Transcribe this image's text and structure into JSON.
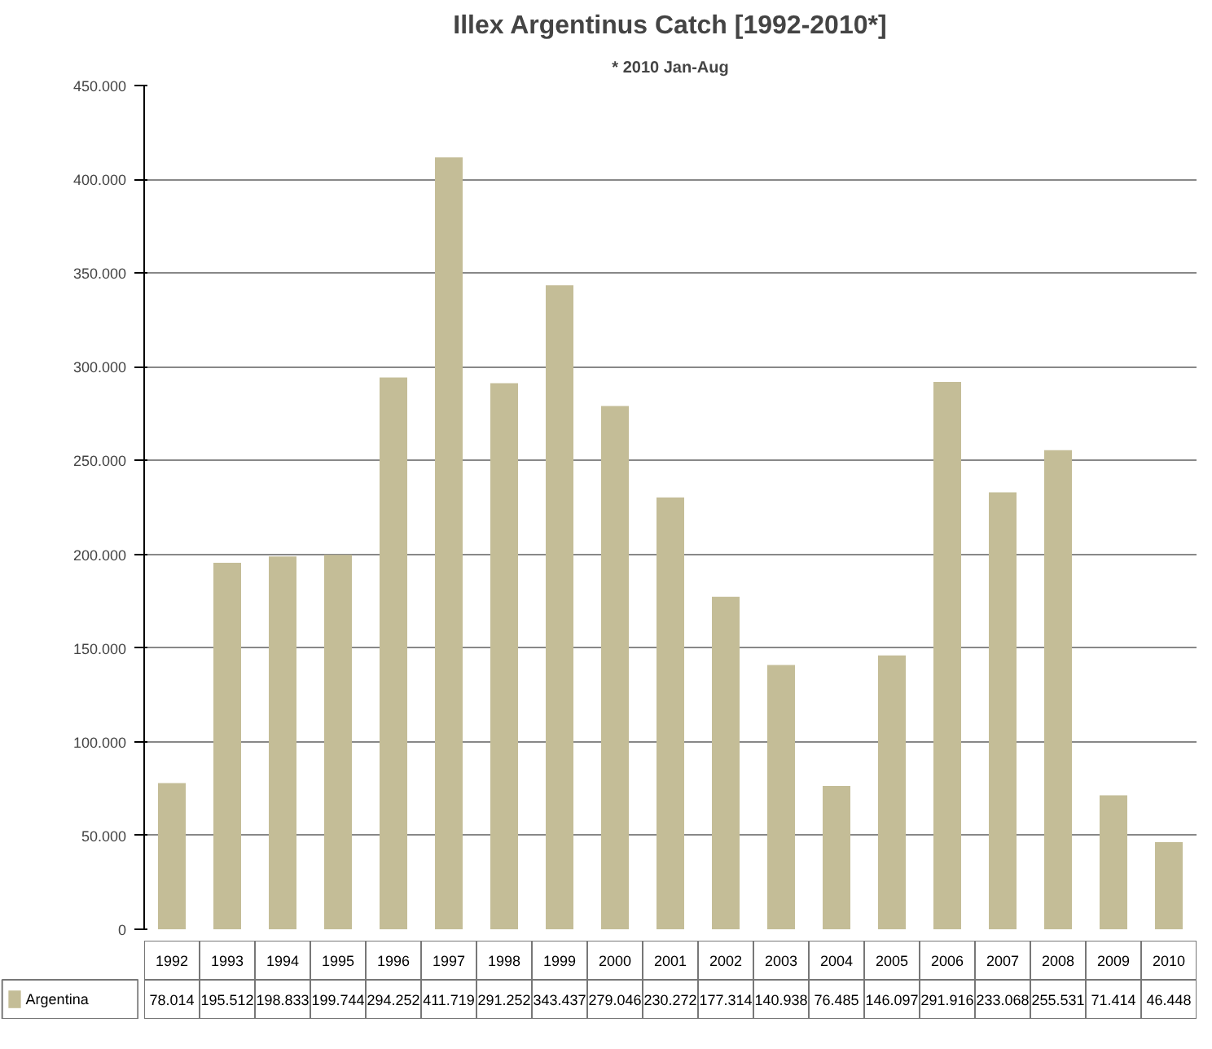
{
  "chart_data": {
    "type": "bar",
    "title": "Illex Argentinus Catch [1992-2010*]",
    "subtitle": "* 2010 Jan-Aug",
    "categories": [
      "1992",
      "1993",
      "1994",
      "1995",
      "1996",
      "1997",
      "1998",
      "1999",
      "2000",
      "2001",
      "2002",
      "2003",
      "2004",
      "2005",
      "2006",
      "2007",
      "2008",
      "2009",
      "2010"
    ],
    "series": [
      {
        "name": "Argentina",
        "color": "#c4bd97",
        "values": [
          78014,
          195512,
          198833,
          199744,
          294252,
          411719,
          291252,
          343437,
          279046,
          230272,
          177314,
          140938,
          76485,
          146097,
          291916,
          233068,
          255531,
          71414,
          46448
        ],
        "value_labels": [
          "78.014",
          "195.512",
          "198.833",
          "199.744",
          "294.252",
          "411.719",
          "291.252",
          "343.437",
          "279.046",
          "230.272",
          "177.314",
          "140.938",
          "76.485",
          "146.097",
          "291.916",
          "233.068",
          "255.531",
          "71.414",
          "46.448"
        ]
      }
    ],
    "ylim": [
      0,
      450000
    ],
    "yticks": [
      {
        "value": 0,
        "label": "0"
      },
      {
        "value": 50000,
        "label": "50.000"
      },
      {
        "value": 100000,
        "label": "100.000"
      },
      {
        "value": 150000,
        "label": "150.000"
      },
      {
        "value": 200000,
        "label": "200.000"
      },
      {
        "value": 250000,
        "label": "250.000"
      },
      {
        "value": 300000,
        "label": "300.000"
      },
      {
        "value": 350000,
        "label": "350.000"
      },
      {
        "value": 400000,
        "label": "400.000"
      },
      {
        "value": 450000,
        "label": "450.000"
      }
    ],
    "grid": "y",
    "legend": "bottom"
  }
}
